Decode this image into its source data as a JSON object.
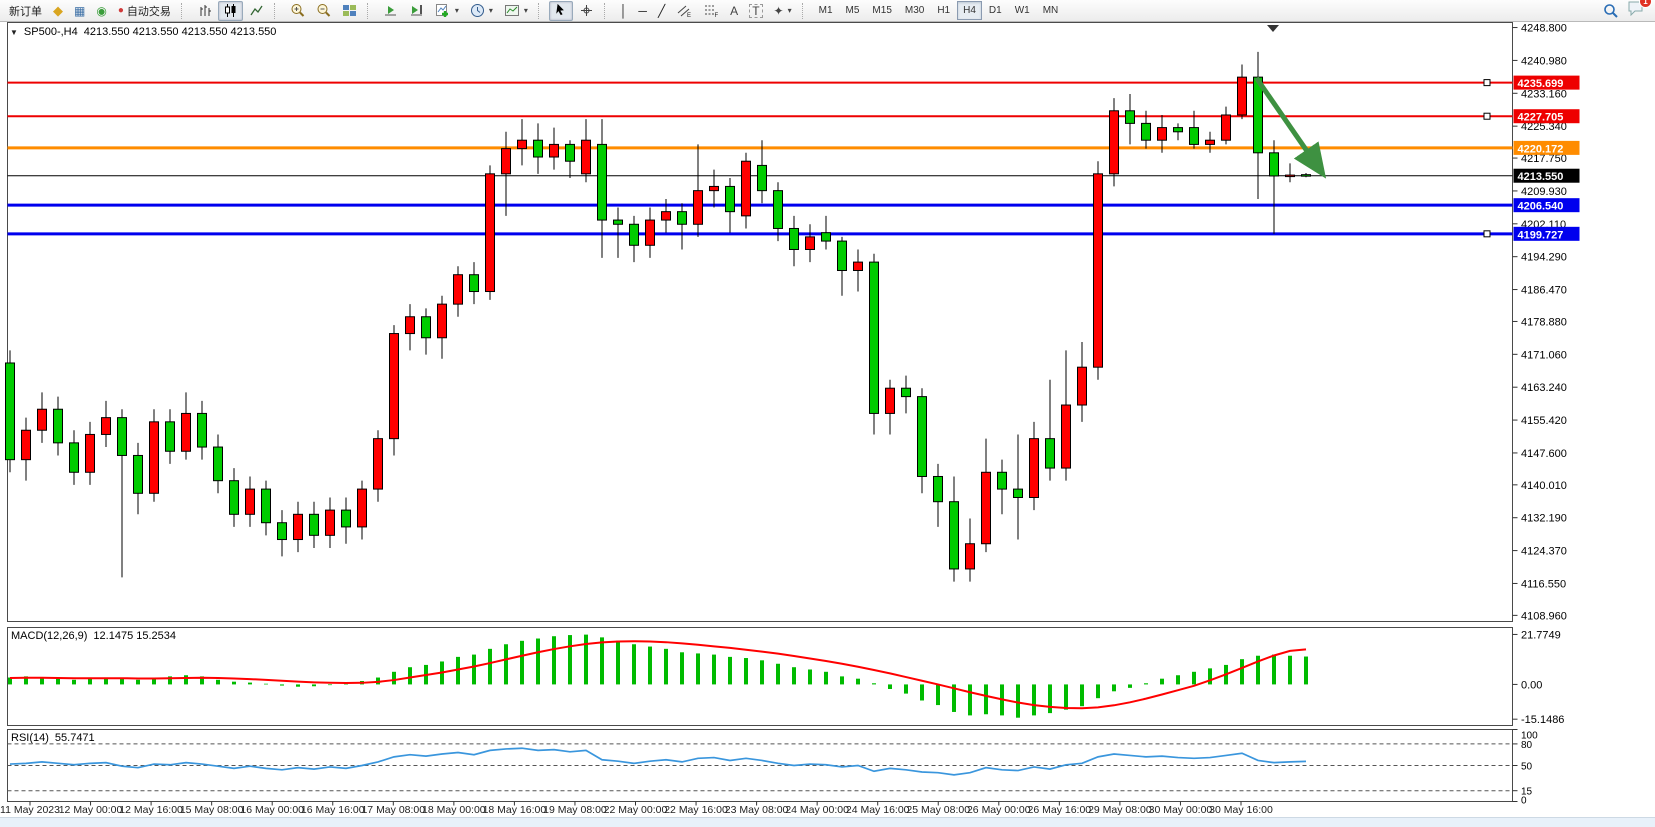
{
  "toolbar": {
    "new_order_label": "新订单",
    "autotrading_label": "自动交易",
    "icons": {
      "market_watch": "◆",
      "data_window": "▦",
      "navigator": "◉",
      "autotrading_dot": "●",
      "vline": "│",
      "hline": "─",
      "trendline": "╱",
      "text": "A",
      "label": "T",
      "arrows": "✦",
      "caret": "▾"
    },
    "timeframes": [
      "M1",
      "M5",
      "M15",
      "M30",
      "H1",
      "H4",
      "D1",
      "W1",
      "MN"
    ],
    "active_timeframe": "H4",
    "notification_badge": "1"
  },
  "chart_header": {
    "collapse_arrow": "▼",
    "symbol_period": "SP500-,H4",
    "ohlc_readout": "4213.550 4213.550 4213.550 4213.550"
  },
  "indicators": {
    "macd_label": "MACD(12,26,9)",
    "macd_values": "12.1475 15.2534",
    "rsi_label": "RSI(14)",
    "rsi_value": "55.7471"
  },
  "chart_data": {
    "type": "candlestick",
    "symbol": "SP500-",
    "timeframe": "H4",
    "bull_color": "#ff0000",
    "bear_color": "#00cc00",
    "candle_outline": "#000000",
    "ylim": [
      4107.5,
      4250.0
    ],
    "price_ticks": [
      "4248.800",
      "4240.980",
      "4233.160",
      "4225.340",
      "4217.750",
      "4209.930",
      "4202.110",
      "4194.290",
      "4186.470",
      "4178.880",
      "4171.060",
      "4163.240",
      "4155.420",
      "4147.600",
      "4140.010",
      "4132.190",
      "4124.370",
      "4116.550",
      "4108.960"
    ],
    "time_labels": [
      "11 May 2023",
      "12 May 00:00",
      "12 May 16:00",
      "15 May 08:00",
      "16 May 00:00",
      "16 May 16:00",
      "17 May 08:00",
      "18 May 00:00",
      "18 May 16:00",
      "19 May 08:00",
      "22 May 00:00",
      "22 May 16:00",
      "23 May 08:00",
      "24 May 00:00",
      "24 May 16:00",
      "25 May 08:00",
      "26 May 00:00",
      "26 May 16:00",
      "29 May 08:00",
      "30 May 00:00",
      "30 May 16:00"
    ],
    "candles": [
      [
        4169,
        4172,
        4143,
        4146
      ],
      [
        4146,
        4156,
        4141,
        4153
      ],
      [
        4153,
        4162,
        4150,
        4158
      ],
      [
        4158,
        4161,
        4147,
        4150
      ],
      [
        4150,
        4153,
        4140,
        4143
      ],
      [
        4143,
        4155,
        4140,
        4152
      ],
      [
        4152,
        4160,
        4149,
        4156
      ],
      [
        4156,
        4158,
        4118,
        4147
      ],
      [
        4147,
        4150,
        4133,
        4138
      ],
      [
        4138,
        4158,
        4136,
        4155
      ],
      [
        4155,
        4158,
        4145,
        4148
      ],
      [
        4148,
        4162,
        4146,
        4157
      ],
      [
        4157,
        4160,
        4146,
        4149
      ],
      [
        4149,
        4152,
        4138,
        4141
      ],
      [
        4141,
        4144,
        4130,
        4133
      ],
      [
        4133,
        4142,
        4130,
        4139
      ],
      [
        4139,
        4141,
        4128,
        4131
      ],
      [
        4131,
        4134,
        4123,
        4127
      ],
      [
        4127,
        4136,
        4124,
        4133
      ],
      [
        4133,
        4136,
        4125,
        4128
      ],
      [
        4128,
        4137,
        4125,
        4134
      ],
      [
        4134,
        4137,
        4126,
        4130
      ],
      [
        4130,
        4141,
        4127,
        4139
      ],
      [
        4139,
        4153,
        4136,
        4151
      ],
      [
        4151,
        4178,
        4147,
        4176
      ],
      [
        4176,
        4183,
        4172,
        4180
      ],
      [
        4180,
        4182,
        4171,
        4175
      ],
      [
        4175,
        4185,
        4170,
        4183
      ],
      [
        4183,
        4192,
        4180,
        4190
      ],
      [
        4190,
        4193,
        4183,
        4186
      ],
      [
        4186,
        4216,
        4184,
        4214
      ],
      [
        4214,
        4224,
        4204,
        4220
      ],
      [
        4220,
        4227,
        4216,
        4222
      ],
      [
        4222,
        4226,
        4214,
        4218
      ],
      [
        4218,
        4225,
        4215,
        4221
      ],
      [
        4221,
        4222,
        4213,
        4217
      ],
      [
        4214,
        4227,
        4212,
        4222
      ],
      [
        4221,
        4227,
        4194,
        4203
      ],
      [
        4203,
        4206,
        4194,
        4202
      ],
      [
        4202,
        4204,
        4193,
        4197
      ],
      [
        4197,
        4206,
        4194,
        4203
      ],
      [
        4203,
        4208,
        4200,
        4205
      ],
      [
        4205,
        4207,
        4196,
        4202
      ],
      [
        4202,
        4221,
        4199,
        4210
      ],
      [
        4210,
        4215,
        4206,
        4211
      ],
      [
        4211,
        4213,
        4200,
        4205
      ],
      [
        4204,
        4219,
        4201,
        4217
      ],
      [
        4216,
        4222,
        4207,
        4210
      ],
      [
        4210,
        4212,
        4198,
        4201
      ],
      [
        4201,
        4204,
        4192,
        4196
      ],
      [
        4196,
        4202,
        4193,
        4199
      ],
      [
        4200,
        4204,
        4196,
        4198
      ],
      [
        4198,
        4199,
        4185,
        4191
      ],
      [
        4191,
        4196,
        4186,
        4193
      ],
      [
        4193,
        4195,
        4152,
        4157
      ],
      [
        4157,
        4165,
        4152,
        4163
      ],
      [
        4163,
        4166,
        4157,
        4161
      ],
      [
        4161,
        4163,
        4138,
        4142
      ],
      [
        4142,
        4145,
        4130,
        4136
      ],
      [
        4136,
        4142,
        4117,
        4120
      ],
      [
        4120,
        4132,
        4117,
        4126
      ],
      [
        4126,
        4151,
        4124,
        4143
      ],
      [
        4143,
        4146,
        4133,
        4139
      ],
      [
        4139,
        4152,
        4127,
        4137
      ],
      [
        4137,
        4155,
        4134,
        4151
      ],
      [
        4151,
        4165,
        4141,
        4144
      ],
      [
        4144,
        4172,
        4141,
        4159
      ],
      [
        4159,
        4174,
        4155,
        4168
      ],
      [
        4168,
        4217,
        4165,
        4214
      ],
      [
        4214,
        4232,
        4211,
        4229
      ],
      [
        4229,
        4233,
        4221,
        4226
      ],
      [
        4226,
        4229,
        4220,
        4222
      ],
      [
        4222,
        4228,
        4219,
        4225
      ],
      [
        4225,
        4226,
        4222,
        4224
      ],
      [
        4225,
        4229,
        4220,
        4221
      ],
      [
        4221,
        4224,
        4219,
        4222
      ],
      [
        4222,
        4230,
        4221,
        4228
      ],
      [
        4228,
        4240,
        4227,
        4237
      ],
      [
        4237,
        4243,
        4208,
        4219
      ],
      [
        4219,
        4222,
        4199.7,
        4213.5
      ],
      [
        4213.5,
        4216.5,
        4212,
        4213.7
      ],
      [
        4213.8,
        4214.2,
        4213.2,
        4213.5
      ]
    ],
    "hlines": [
      {
        "price": 4235.699,
        "label": "4235.699",
        "color": "#ee0000",
        "width": 2,
        "handles": true
      },
      {
        "price": 4227.705,
        "label": "4227.705",
        "color": "#ee0000",
        "width": 2,
        "handles": true
      },
      {
        "price": 4220.172,
        "label": "4220.172",
        "color": "#ff8c00",
        "width": 3,
        "handles": false
      },
      {
        "price": 4213.55,
        "label": "4213.550",
        "color": "#000000",
        "width": 1,
        "handles": false
      },
      {
        "price": 4206.54,
        "label": "4206.540",
        "color": "#0000ee",
        "width": 3,
        "handles": false
      },
      {
        "price": 4199.727,
        "label": "4199.727",
        "color": "#0000ee",
        "width": 3,
        "handles": true
      }
    ],
    "arrow": {
      "from_bar": 77.9,
      "from_price": 4236.8,
      "to_bar": 81.9,
      "to_price": 4214.8,
      "color": "#3e9141"
    },
    "macd": {
      "ylim": [
        -17.9,
        24.8
      ],
      "axis_labels": [
        "21.7749",
        "0.00",
        "-15.1486"
      ],
      "hist_color": "#00bb00",
      "signal_color": "#ff0000",
      "histogram": [
        3,
        3.5,
        3,
        2.5,
        2,
        2.5,
        3,
        2.5,
        2,
        3,
        3.5,
        4,
        3.5,
        2,
        1.2,
        0.8,
        0.3,
        -0.5,
        -1,
        -0.8,
        -0.3,
        0.5,
        1.5,
        3,
        5.5,
        7.5,
        8.5,
        10,
        12,
        13,
        15.5,
        17.5,
        19,
        20,
        21,
        21.5,
        21.7,
        20.5,
        19,
        17.5,
        16.5,
        15.5,
        14,
        13.5,
        13,
        12,
        11.5,
        10.5,
        9,
        7.5,
        6.5,
        5.5,
        3.5,
        2.5,
        0.5,
        -2,
        -4,
        -7,
        -9,
        -12,
        -13.5,
        -13,
        -13.5,
        -14.5,
        -13.5,
        -12.5,
        -11,
        -9.5,
        -6,
        -3,
        -1.5,
        0.5,
        2.5,
        4,
        5.5,
        7,
        8.5,
        11,
        12.5,
        13,
        12.5,
        12.15
      ],
      "signal": [
        2.8,
        2.9,
        2.9,
        2.8,
        2.7,
        2.7,
        2.7,
        2.7,
        2.6,
        2.6,
        2.7,
        2.8,
        2.9,
        2.8,
        2.6,
        2.3,
        2.0,
        1.6,
        1.2,
        0.9,
        0.7,
        0.6,
        0.7,
        1.1,
        1.9,
        3.0,
        4.1,
        5.2,
        6.5,
        7.8,
        9.3,
        10.9,
        12.5,
        14.0,
        15.4,
        16.6,
        17.6,
        18.3,
        18.7,
        18.8,
        18.7,
        18.4,
        17.9,
        17.3,
        16.6,
        15.9,
        15.1,
        14.3,
        13.4,
        12.4,
        11.3,
        10.2,
        9.0,
        7.7,
        6.3,
        4.8,
        3.2,
        1.6,
        0.0,
        -1.7,
        -3.4,
        -5.0,
        -6.5,
        -7.9,
        -9.0,
        -9.8,
        -10.3,
        -10.4,
        -10.0,
        -9.1,
        -7.8,
        -6.2,
        -4.4,
        -2.5,
        -0.6,
        1.8,
        4.4,
        7.2,
        10.0,
        12.6,
        14.6,
        15.25
      ]
    },
    "rsi": {
      "ylim": [
        0,
        100
      ],
      "axis_labels": [
        "100",
        "80",
        "50",
        "15",
        "0"
      ],
      "levels": [
        80,
        50,
        15
      ],
      "line_color": "#3a96dd",
      "values": [
        52,
        53,
        55,
        53,
        51,
        53,
        54,
        49,
        47,
        52,
        51,
        54,
        52,
        49,
        46,
        49,
        46,
        44,
        47,
        45,
        48,
        46,
        50,
        55,
        62,
        65,
        63,
        66,
        68,
        65,
        71,
        73,
        74,
        71,
        72,
        69,
        71,
        58,
        56,
        53,
        56,
        58,
        55,
        60,
        61,
        57,
        60,
        57,
        53,
        50,
        52,
        51,
        48,
        50,
        42,
        46,
        44,
        41,
        40,
        37,
        40,
        47,
        44,
        43,
        48,
        45,
        51,
        53,
        62,
        66,
        64,
        62,
        63,
        61,
        60,
        61,
        64,
        67,
        57,
        54,
        55,
        55.75
      ]
    }
  }
}
